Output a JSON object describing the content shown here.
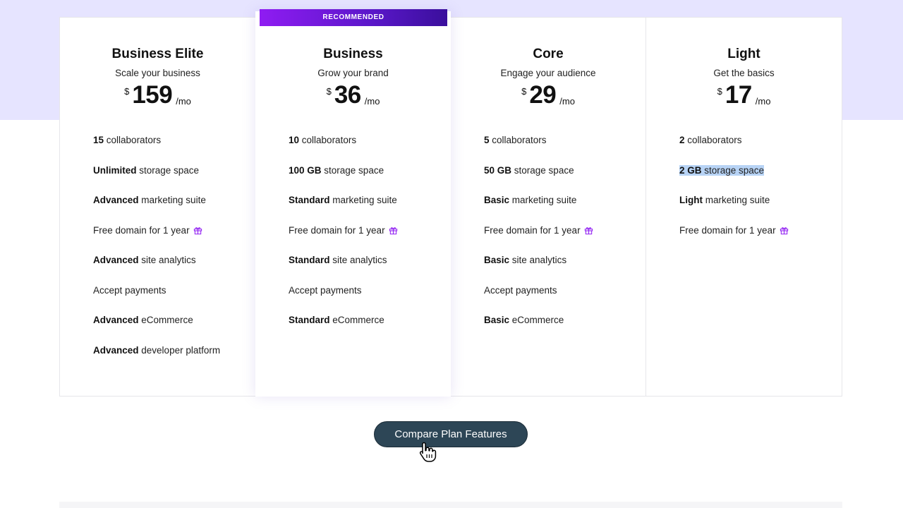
{
  "plans": [
    {
      "name": "Business Elite",
      "tagline": "Scale your business",
      "currency": "$",
      "price": "159",
      "period": "/mo",
      "features": [
        {
          "bold": "15",
          "text": " collaborators"
        },
        {
          "bold": "Unlimited",
          "text": " storage space"
        },
        {
          "bold": "Advanced",
          "text": " marketing suite"
        },
        {
          "bold": "",
          "text": "Free domain for 1 year",
          "icon": "gift-icon"
        },
        {
          "bold": "Advanced",
          "text": " site analytics"
        },
        {
          "bold": "",
          "text": "Accept payments"
        },
        {
          "bold": "Advanced",
          "text": " eCommerce"
        },
        {
          "bold": "Advanced",
          "text": " developer platform"
        }
      ]
    },
    {
      "name": "Business",
      "tagline": "Grow your brand",
      "badge": "RECOMMENDED",
      "currency": "$",
      "price": "36",
      "period": "/mo",
      "features": [
        {
          "bold": "10",
          "text": " collaborators"
        },
        {
          "bold": "100 GB",
          "text": " storage space"
        },
        {
          "bold": "Standard",
          "text": " marketing suite"
        },
        {
          "bold": "",
          "text": "Free domain for 1 year",
          "icon": "gift-icon"
        },
        {
          "bold": "Standard",
          "text": " site analytics"
        },
        {
          "bold": "",
          "text": "Accept payments"
        },
        {
          "bold": "Standard",
          "text": " eCommerce"
        }
      ]
    },
    {
      "name": "Core",
      "tagline": "Engage your audience",
      "currency": "$",
      "price": "29",
      "period": "/mo",
      "features": [
        {
          "bold": "5",
          "text": " collaborators"
        },
        {
          "bold": "50 GB",
          "text": " storage space"
        },
        {
          "bold": "Basic",
          "text": " marketing suite"
        },
        {
          "bold": "",
          "text": "Free domain for 1 year",
          "icon": "gift-icon"
        },
        {
          "bold": "Basic",
          "text": " site analytics"
        },
        {
          "bold": "",
          "text": "Accept payments"
        },
        {
          "bold": "Basic",
          "text": " eCommerce"
        }
      ]
    },
    {
      "name": "Light",
      "tagline": "Get the basics",
      "currency": "$",
      "price": "17",
      "period": "/mo",
      "features": [
        {
          "bold": "2",
          "text": " collaborators"
        },
        {
          "bold": "2 GB",
          "text": " storage space",
          "highlighted": true
        },
        {
          "bold": "Light",
          "text": " marketing suite"
        },
        {
          "bold": "",
          "text": "Free domain for 1 year",
          "icon": "gift-icon"
        }
      ]
    }
  ],
  "compare_button": {
    "label": "Compare Plan Features"
  },
  "colors": {
    "accent_purple": "#8f1cf2",
    "button_bg": "#2d4656",
    "top_band": "#e6e4ff",
    "selection": "#b7d3f5"
  },
  "cursor": {
    "icon": "hand-pointer-icon"
  }
}
